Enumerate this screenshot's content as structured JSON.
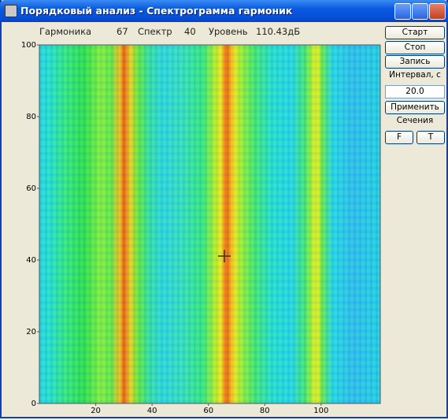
{
  "window": {
    "title": "Порядковый анализ - Спектрограмма гармоник"
  },
  "status": {
    "harmonic_label": "Гармоника",
    "harmonic": 67,
    "spectrum_label": "Спектр",
    "spectrum": 40,
    "level_label": "Уровень",
    "level": "110.43дБ"
  },
  "panel": {
    "start": "Старт",
    "stop": "Стоп",
    "record": "Запись",
    "interval_label": "Интервал, с",
    "interval": "20.0",
    "apply": "Применить",
    "sections_label": "Сечения",
    "f_button": "F",
    "t_button": "T"
  },
  "spectrogram": {
    "xlim": [
      0,
      121
    ],
    "ylim": [
      0,
      100
    ],
    "xticks": [
      20,
      40,
      60,
      80,
      100
    ],
    "yticks": [
      0,
      20,
      40,
      60,
      80,
      100
    ]
  }
}
